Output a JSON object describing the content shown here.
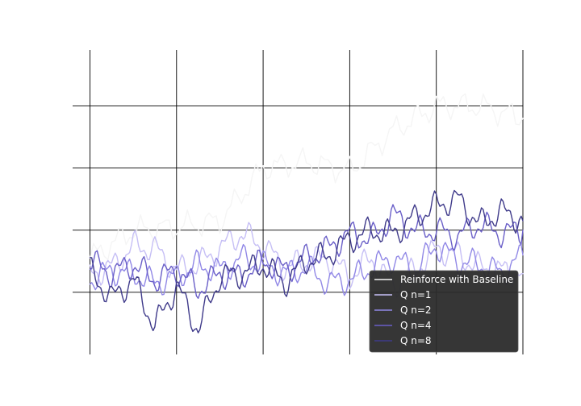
{
  "chart_data": {
    "type": "line",
    "title": "",
    "xlabel": "",
    "ylabel": "",
    "xlim": [
      -0.2,
      5.0
    ],
    "ylim": [
      -1.0,
      3.9
    ],
    "x_grid": [
      0,
      1,
      2,
      3,
      4,
      5
    ],
    "y_grid": [
      0,
      1,
      2,
      3
    ],
    "grid": true,
    "legend_position": "lower-right",
    "series": [
      {
        "name": "Reinforce with Baseline",
        "color": "#f5f5f5",
        "x": [
          0.0,
          0.5,
          1.0,
          1.5,
          2.0,
          2.5,
          3.0,
          3.5,
          4.0,
          4.5,
          5.0
        ],
        "values": [
          0.55,
          1.0,
          1.05,
          1.15,
          2.0,
          2.1,
          1.95,
          2.6,
          3.0,
          3.0,
          2.8
        ]
      },
      {
        "name": "Q n=1",
        "color": "#c6bff5",
        "x": [
          0.0,
          0.25,
          0.5,
          0.75,
          1.0,
          1.25,
          1.5,
          1.75,
          2.0,
          2.25,
          2.5,
          2.75,
          3.0,
          3.25,
          3.5,
          3.75,
          4.0,
          4.25,
          4.5,
          4.75,
          5.0
        ],
        "values": [
          0.3,
          0.4,
          0.75,
          0.7,
          0.35,
          0.45,
          0.7,
          0.95,
          0.75,
          0.4,
          0.5,
          0.55,
          0.25,
          0.55,
          0.1,
          0.35,
          0.7,
          0.6,
          0.4,
          0.35,
          0.3
        ]
      },
      {
        "name": "Q n=2",
        "color": "#9188e6",
        "x": [
          0.0,
          0.25,
          0.5,
          0.75,
          1.0,
          1.25,
          1.5,
          1.75,
          2.0,
          2.25,
          2.5,
          2.75,
          3.0,
          3.25,
          3.5,
          3.75,
          4.0,
          4.25,
          4.5,
          4.75,
          5.0
        ],
        "values": [
          0.2,
          0.35,
          0.3,
          0.15,
          0.25,
          0.45,
          0.35,
          0.55,
          0.45,
          0.3,
          0.4,
          0.15,
          0.2,
          0.4,
          0.55,
          0.35,
          0.75,
          0.5,
          0.45,
          0.3,
          0.6
        ]
      },
      {
        "name": "Q n=4",
        "color": "#6a5fc8",
        "x": [
          0.0,
          0.25,
          0.5,
          0.75,
          1.0,
          1.25,
          1.5,
          1.75,
          2.0,
          2.25,
          2.5,
          2.75,
          3.0,
          3.25,
          3.5,
          3.75,
          4.0,
          4.25,
          4.5,
          4.75,
          5.0
        ],
        "values": [
          0.5,
          0.3,
          0.45,
          0.2,
          0.35,
          0.05,
          0.3,
          0.25,
          0.5,
          0.35,
          0.55,
          0.7,
          0.95,
          0.85,
          1.25,
          1.0,
          1.0,
          0.9,
          1.1,
          0.95,
          1.0
        ]
      },
      {
        "name": "Q n=8",
        "color": "#3f3a8a",
        "x": [
          0.0,
          0.25,
          0.5,
          0.75,
          1.0,
          1.25,
          1.5,
          1.75,
          2.0,
          2.25,
          2.5,
          2.75,
          3.0,
          3.25,
          3.5,
          3.75,
          4.0,
          4.25,
          4.5,
          4.75,
          5.0
        ],
        "values": [
          0.35,
          -0.1,
          0.2,
          -0.55,
          0.1,
          -0.6,
          0.25,
          0.3,
          0.45,
          0.15,
          0.5,
          0.6,
          0.85,
          1.0,
          0.95,
          1.2,
          1.4,
          1.5,
          1.1,
          1.3,
          1.15
        ]
      }
    ]
  }
}
